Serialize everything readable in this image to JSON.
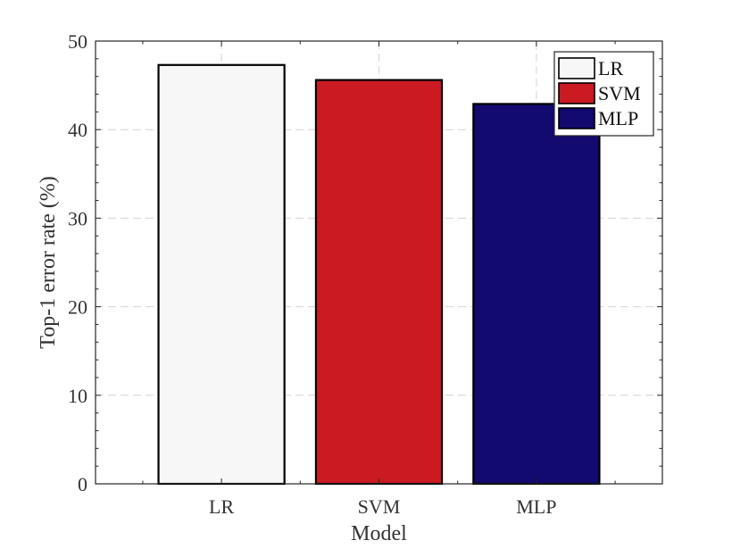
{
  "chart_data": {
    "type": "bar",
    "categories": [
      "LR",
      "SVM",
      "MLP"
    ],
    "values": [
      47.3,
      45.6,
      42.9
    ],
    "colors": [
      "#f7f7f7",
      "#cc1a22",
      "#120a6e"
    ],
    "xlabel": "Model",
    "ylabel": "Top-1 error rate (%)",
    "ylim": [
      0,
      50
    ],
    "yticks": [
      "0",
      "10",
      "20",
      "30",
      "40",
      "50"
    ],
    "grid": true,
    "legend": {
      "placement": "top-right",
      "entries": [
        "LR",
        "SVM",
        "MLP"
      ]
    }
  }
}
